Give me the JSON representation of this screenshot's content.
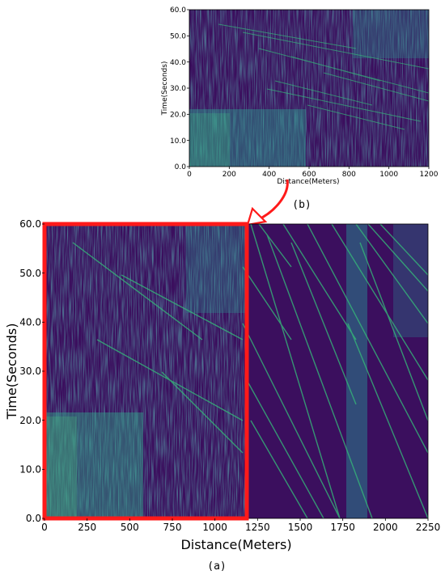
{
  "colors": {
    "background_dark": "#3b0f5e",
    "trace_teal": "#1f9e89",
    "trace_green": "#35b779",
    "highlight_box": "#ff1a1a",
    "arrow": "#ff1a1a"
  },
  "chart_data": [
    {
      "id": "b",
      "type": "heatmap",
      "caption": "(b)",
      "xlabel": "Distance(Meters)",
      "ylabel": "Time(Seconds)",
      "xlim": [
        0,
        1200
      ],
      "ylim": [
        0,
        60
      ],
      "xticks": [
        0,
        200,
        400,
        600,
        800,
        1000,
        1200
      ],
      "xtick_labels": [
        "0",
        "200",
        "400",
        "600",
        "800",
        "1000",
        "1200"
      ],
      "yticks": [
        0,
        10,
        20,
        30,
        40,
        50,
        60
      ],
      "ytick_labels": [
        "0.0",
        "10.0",
        "20.0",
        "30.0",
        "40.0",
        "50.0",
        "60.0"
      ],
      "colormap": "viridis"
    },
    {
      "id": "a",
      "type": "heatmap",
      "caption": "(a)",
      "xlabel": "Distance(Meters)",
      "ylabel": "Time(Seconds)",
      "xlim": [
        0,
        2250
      ],
      "ylim": [
        0,
        60
      ],
      "xticks": [
        0,
        250,
        500,
        750,
        1000,
        1250,
        1500,
        1750,
        2000,
        2250
      ],
      "xtick_labels": [
        "0",
        "250",
        "500",
        "750",
        "1000",
        "1250",
        "1500",
        "1750",
        "2000",
        "2250"
      ],
      "yticks": [
        0,
        10,
        20,
        30,
        40,
        50,
        60
      ],
      "ytick_labels": [
        "0.0",
        "10.0",
        "20.0",
        "30.0",
        "40.0",
        "50.0",
        "60.0"
      ],
      "colormap": "viridis",
      "highlight_region": {
        "x": [
          0,
          1200
        ],
        "y": [
          0,
          60
        ]
      }
    }
  ]
}
